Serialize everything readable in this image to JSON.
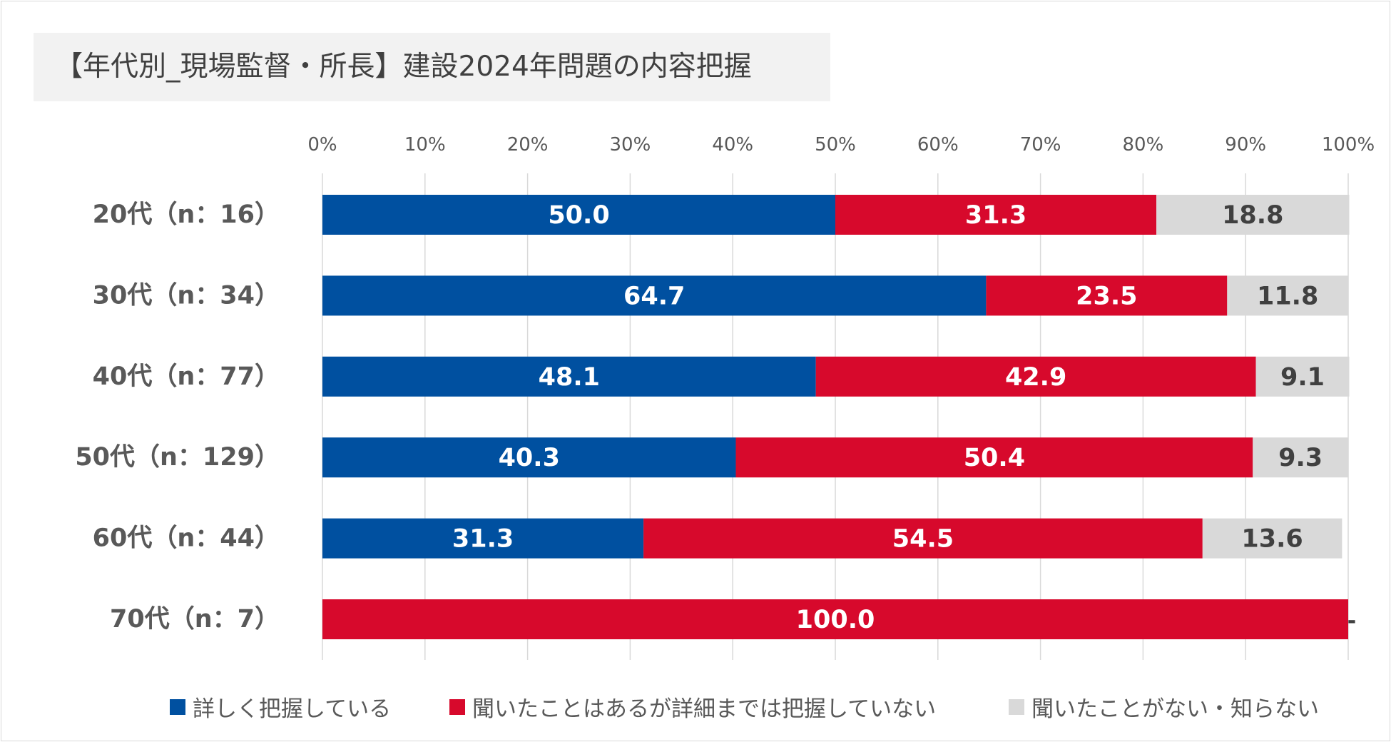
{
  "chart_data": {
    "type": "bar",
    "orientation": "horizontal",
    "stacked": true,
    "title": "【年代別_現場監督・所長】建設2024年問題の内容把握",
    "categories": [
      "20代（n：16）",
      "30代（n：34）",
      "40代（n：77）",
      "50代（n：129）",
      "60代（n：44）",
      "70代（n：7）"
    ],
    "series": [
      {
        "name": "詳しく把握している",
        "color": "#0050a0",
        "values": [
          50.0,
          64.7,
          48.1,
          40.3,
          31.3,
          0.0
        ],
        "labels": [
          "50.0",
          "64.7",
          "48.1",
          "40.3",
          "31.3",
          "-"
        ]
      },
      {
        "name": "聞いたことはあるが詳細までは把握していない",
        "color": "#d7092c",
        "values": [
          31.3,
          23.5,
          42.9,
          50.4,
          54.5,
          100.0
        ],
        "labels": [
          "31.3",
          "23.5",
          "42.9",
          "50.4",
          "54.5",
          "100.0"
        ]
      },
      {
        "name": "聞いたことがない・知らない",
        "color": "#d9d9d9",
        "values": [
          18.8,
          11.8,
          9.1,
          9.3,
          13.6,
          0.0
        ],
        "labels": [
          "18.8",
          "11.8",
          "9.1",
          "9.3",
          "13.6",
          "-"
        ]
      }
    ],
    "xlim": [
      0,
      100
    ],
    "xticks": [
      "0%",
      "10%",
      "20%",
      "30%",
      "40%",
      "50%",
      "60%",
      "70%",
      "80%",
      "90%",
      "100%"
    ],
    "grid": true,
    "legend": "bottom",
    "xlabel": "",
    "ylabel": ""
  }
}
